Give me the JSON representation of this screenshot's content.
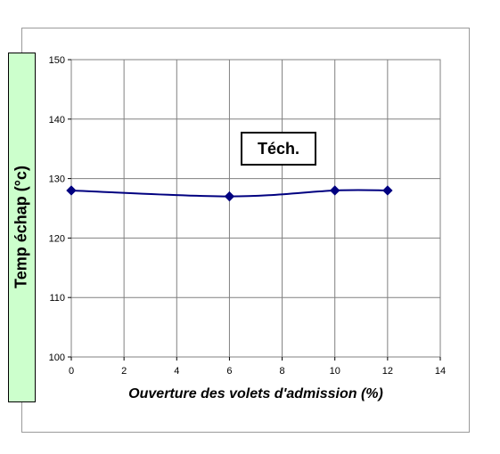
{
  "chart_data": {
    "type": "line",
    "title": "",
    "xlabel": "Ouverture des volets d'admission (%)",
    "ylabel": "Temp échap (°c)",
    "xlim": [
      0,
      14
    ],
    "ylim": [
      100,
      150
    ],
    "xticks": [
      0,
      2,
      4,
      6,
      8,
      10,
      12,
      14
    ],
    "yticks": [
      100,
      110,
      120,
      130,
      140,
      150
    ],
    "grid": true,
    "legend": "none",
    "annotation": "Téch.",
    "series": [
      {
        "color": "#000080",
        "marker": "diamond",
        "x": [
          0,
          6,
          10,
          12
        ],
        "y": [
          128,
          127,
          128,
          128
        ]
      }
    ]
  },
  "colors": {
    "plot_border": "#808080",
    "grid": "#808080",
    "ylabel_bg": "#ccffcc",
    "line": "#000080"
  }
}
